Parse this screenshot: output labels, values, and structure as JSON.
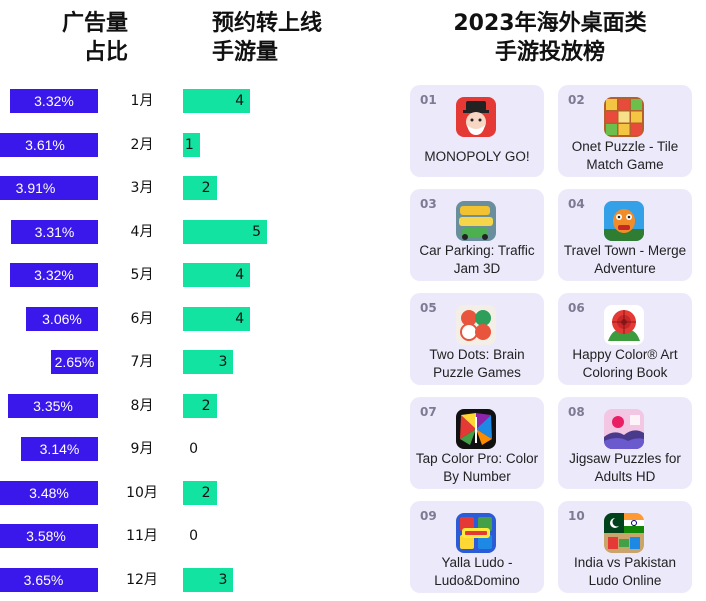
{
  "headers": {
    "ad_share": [
      "广告量",
      "占比"
    ],
    "preorder": [
      "预约转上线",
      "手游量"
    ],
    "top_chart": [
      "2023年海外桌面类",
      "手游投放榜"
    ]
  },
  "colors": {
    "ad_bar": "#3a17ea",
    "preorder_bar": "#12e3a0",
    "card_bg": "#ece9fb"
  },
  "chart_data": {
    "type": "bar",
    "categories": [
      "1月",
      "2月",
      "3月",
      "4月",
      "5月",
      "6月",
      "7月",
      "8月",
      "9月",
      "10月",
      "11月",
      "12月"
    ],
    "series": [
      {
        "name": "广告量占比",
        "values": [
          "3.32%",
          "3.61%",
          "3.91%",
          "3.31%",
          "3.32%",
          "3.06%",
          "2.65%",
          "3.35%",
          "3.14%",
          "3.48%",
          "3.58%",
          "3.65%"
        ]
      },
      {
        "name": "预约转上线手游量",
        "values": [
          4,
          1,
          2,
          5,
          4,
          4,
          3,
          2,
          0,
          2,
          0,
          3
        ]
      }
    ]
  },
  "ranking": [
    {
      "rank": "01",
      "name": "MONOPOLY GO!",
      "icon": "monopoly-icon"
    },
    {
      "rank": "02",
      "name": "Onet Puzzle - Tile Match Game",
      "icon": "onet-puzzle-icon"
    },
    {
      "rank": "03",
      "name": "Car Parking: Traffic Jam 3D",
      "icon": "car-parking-icon"
    },
    {
      "rank": "04",
      "name": "Travel Town - Merge Adventure",
      "icon": "travel-town-icon"
    },
    {
      "rank": "05",
      "name": "Two Dots: Brain Puzzle Games",
      "icon": "two-dots-icon"
    },
    {
      "rank": "06",
      "name": "Happy Color® Art Coloring Book",
      "icon": "happy-color-icon"
    },
    {
      "rank": "07",
      "name": "Tap Color Pro: Color By Number",
      "icon": "tap-color-icon"
    },
    {
      "rank": "08",
      "name": "Jigsaw Puzzles for Adults HD",
      "icon": "jigsaw-puzzles-icon"
    },
    {
      "rank": "09",
      "name": "Yalla Ludo - Ludo&Domino",
      "icon": "yalla-ludo-icon"
    },
    {
      "rank": "10",
      "name": "India vs Pakistan Ludo Online",
      "icon": "india-pakistan-ludo-icon"
    }
  ]
}
